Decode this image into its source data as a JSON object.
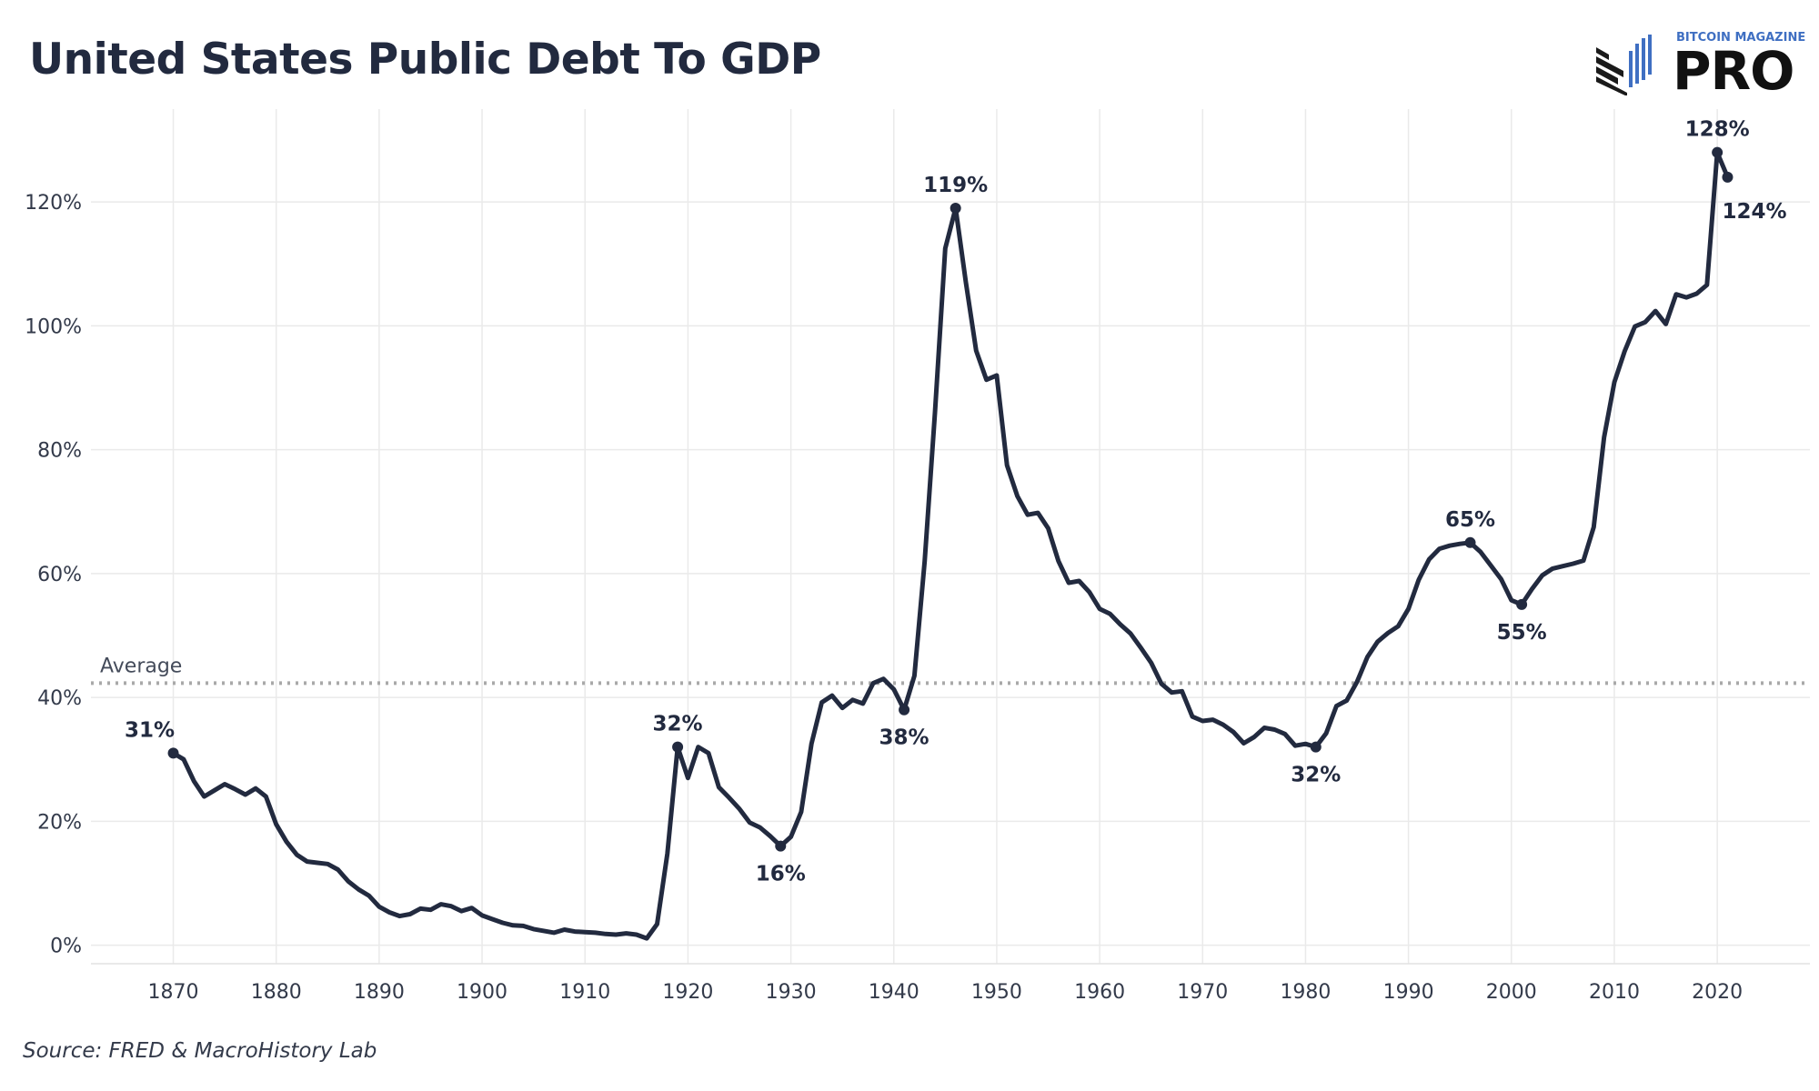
{
  "page": {
    "title": "United States Public Debt To GDP",
    "source": "Source: FRED & MacroHistory Lab",
    "logo_top_text": "BITCOIN MAGAZINE",
    "logo_main_text": "PRO"
  },
  "colors": {
    "line": "#222a3f",
    "grid": "#eaeaea",
    "average": "#a9a9a9",
    "logo_blue": "#3f6fc2"
  },
  "chart_data": {
    "type": "line",
    "title": "United States Public Debt To GDP",
    "xlabel": "",
    "ylabel": "",
    "xlim": [
      1862,
      2029
    ],
    "ylim": [
      -3,
      135
    ],
    "x_ticks": [
      1870,
      1880,
      1890,
      1900,
      1910,
      1920,
      1930,
      1940,
      1950,
      1960,
      1970,
      1980,
      1990,
      2000,
      2010,
      2020
    ],
    "y_ticks": [
      0,
      20,
      40,
      60,
      80,
      100,
      120
    ],
    "y_tick_labels": [
      "0%",
      "20%",
      "40%",
      "60%",
      "80%",
      "100%",
      "120%"
    ],
    "grid": true,
    "average": {
      "label": "Average",
      "value": 42.3
    },
    "series": [
      {
        "x": [
          1870,
          1871,
          1872,
          1873,
          1874,
          1875,
          1876,
          1877,
          1878,
          1879,
          1880,
          1881,
          1882,
          1883,
          1884,
          1885,
          1886,
          1887,
          1888,
          1889,
          1890,
          1891,
          1892,
          1893,
          1894,
          1895,
          1896,
          1897,
          1898,
          1899,
          1900,
          1901,
          1902,
          1903,
          1904,
          1905,
          1906,
          1907,
          1908,
          1909,
          1910,
          1911,
          1912,
          1913,
          1914,
          1915,
          1916,
          1917,
          1918,
          1919,
          1920,
          1921,
          1922,
          1923,
          1924,
          1925,
          1926,
          1927,
          1928,
          1929,
          1930,
          1931,
          1932,
          1933,
          1934,
          1935,
          1936,
          1937,
          1938,
          1939,
          1940,
          1941,
          1942,
          1943,
          1944,
          1945,
          1946,
          1947,
          1948,
          1949,
          1950,
          1951,
          1952,
          1953,
          1954,
          1955,
          1956,
          1957,
          1958,
          1959,
          1960,
          1961,
          1962,
          1963,
          1964,
          1965,
          1966,
          1967,
          1968,
          1969,
          1970,
          1971,
          1972,
          1973,
          1974,
          1975,
          1976,
          1977,
          1978,
          1979,
          1980,
          1981,
          1982,
          1983,
          1984,
          1985,
          1986,
          1987,
          1988,
          1989,
          1990,
          1991,
          1992,
          1993,
          1994,
          1995,
          1996,
          1997,
          1998,
          1999,
          2000,
          2001,
          2002,
          2003,
          2004,
          2005,
          2006,
          2007,
          2008,
          2009,
          2010,
          2011,
          2012,
          2013,
          2014,
          2015,
          2016,
          2017,
          2018,
          2019,
          2020,
          2021
        ],
        "y": [
          31,
          30,
          26.5,
          24,
          25,
          26,
          25.2,
          24.3,
          25.3,
          24,
          19.5,
          16.7,
          14.6,
          13.5,
          13.3,
          13.1,
          12.2,
          10.3,
          9,
          8,
          6.2,
          5.3,
          4.7,
          5,
          5.9,
          5.7,
          6.6,
          6.3,
          5.5,
          6,
          4.8,
          4.2,
          3.6,
          3.2,
          3.1,
          2.6,
          2.3,
          2,
          2.5,
          2.2,
          2.1,
          2,
          1.8,
          1.7,
          1.9,
          1.7,
          1.1,
          3.4,
          14.8,
          32,
          27,
          32,
          31,
          25.5,
          23.8,
          22,
          19.8,
          19,
          17.6,
          16,
          17.5,
          21.5,
          32.5,
          39.2,
          40.3,
          38.3,
          39.6,
          39,
          42.3,
          43,
          41.3,
          38,
          43.5,
          62,
          86,
          112.5,
          119,
          107,
          96,
          91.3,
          92,
          77.5,
          72.5,
          69.5,
          69.8,
          67.3,
          62,
          58.5,
          58.8,
          57,
          54.3,
          53.5,
          51.8,
          50.3,
          48,
          45.6,
          42.2,
          40.8,
          41,
          36.9,
          36.2,
          36.4,
          35.6,
          34.4,
          32.6,
          33.6,
          35.1,
          34.8,
          34.1,
          32.2,
          32.5,
          32,
          34.2,
          38.6,
          39.5,
          42.5,
          46.5,
          49,
          50.4,
          51.5,
          54.3,
          59,
          62.3,
          64,
          64.5,
          64.8,
          65,
          63.5,
          61.3,
          59.1,
          55.7,
          55,
          57.5,
          59.7,
          60.8,
          61.2,
          61.6,
          62.1,
          67.5,
          82,
          90.9,
          95.9,
          99.9,
          100.6,
          102.4,
          100.3,
          105.1,
          104.6,
          105.2,
          106.6,
          128,
          124
        ]
      }
    ],
    "annotations": [
      {
        "x": 1870,
        "y": 31,
        "text": "31%",
        "pos": "above"
      },
      {
        "x": 1919,
        "y": 32,
        "text": "32%",
        "pos": "above"
      },
      {
        "x": 1929,
        "y": 16,
        "text": "16%",
        "pos": "below"
      },
      {
        "x": 1941,
        "y": 38,
        "text": "38%",
        "pos": "below"
      },
      {
        "x": 1946,
        "y": 119,
        "text": "119%",
        "pos": "above"
      },
      {
        "x": 1981,
        "y": 32,
        "text": "32%",
        "pos": "below"
      },
      {
        "x": 1996,
        "y": 65,
        "text": "65%",
        "pos": "above"
      },
      {
        "x": 2001,
        "y": 55,
        "text": "55%",
        "pos": "below"
      },
      {
        "x": 2020,
        "y": 128,
        "text": "128%",
        "pos": "above"
      },
      {
        "x": 2021,
        "y": 124,
        "text": "124%",
        "pos": "below-right"
      }
    ]
  }
}
